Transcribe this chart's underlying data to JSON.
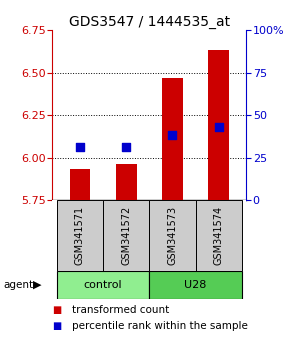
{
  "title": "GDS3547 / 1444535_at",
  "samples": [
    "GSM341571",
    "GSM341572",
    "GSM341573",
    "GSM341574"
  ],
  "red_values": [
    5.93,
    5.96,
    6.47,
    6.63
  ],
  "blue_values": [
    6.06,
    6.06,
    6.13,
    6.18
  ],
  "ylim_left": [
    5.75,
    6.75
  ],
  "ylim_right": [
    0,
    100
  ],
  "yticks_left": [
    5.75,
    6.0,
    6.25,
    6.5,
    6.75
  ],
  "yticks_right": [
    0,
    25,
    50,
    75,
    100
  ],
  "ytick_labels_right": [
    "0",
    "25",
    "50",
    "75",
    "100%"
  ],
  "bar_bottom": 5.75,
  "groups": [
    {
      "label": "control",
      "samples": [
        0,
        1
      ],
      "color": "#90ee90"
    },
    {
      "label": "U28",
      "samples": [
        2,
        3
      ],
      "color": "#55cc55"
    }
  ],
  "red_color": "#cc0000",
  "blue_color": "#0000cc",
  "bar_width": 0.45,
  "title_fontsize": 10,
  "tick_fontsize": 8,
  "legend_fontsize": 7.5
}
